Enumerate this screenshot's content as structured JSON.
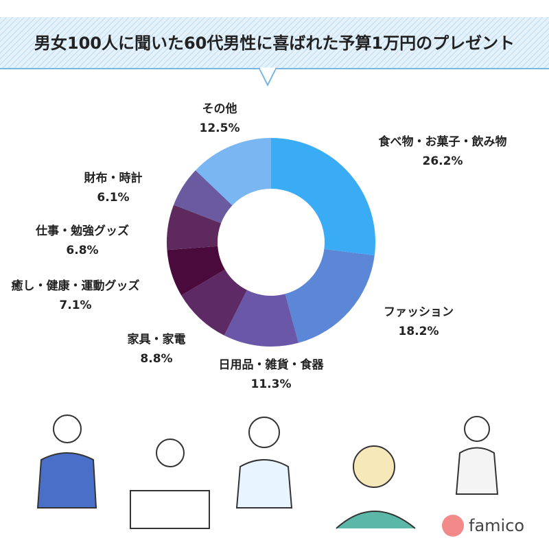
{
  "chart_data": {
    "type": "donut",
    "title": "男女100人に聞いた60代男性に喜ばれた予算1万円のプレゼント",
    "categories": [
      "食べ物・お菓子・飲み物",
      "ファッション",
      "日用品・雑貨・食器",
      "家具・家電",
      "癒し・健康・運動グッズ",
      "仕事・勉強グッズ",
      "財布・時計",
      "その他"
    ],
    "values": [
      26.2,
      18.2,
      11.3,
      8.8,
      7.1,
      6.8,
      6.1,
      12.5
    ],
    "value_labels": [
      "26.2%",
      "18.2%",
      "11.3%",
      "8.8%",
      "7.1%",
      "6.8%",
      "6.1%",
      "12.5%"
    ],
    "colors": [
      "#3aabf5",
      "#5b87d6",
      "#6a57a8",
      "#5e2a66",
      "#4a0a3c",
      "#5e2a5e",
      "#6a5aa0",
      "#7ab6f2"
    ]
  },
  "logo": "famico"
}
